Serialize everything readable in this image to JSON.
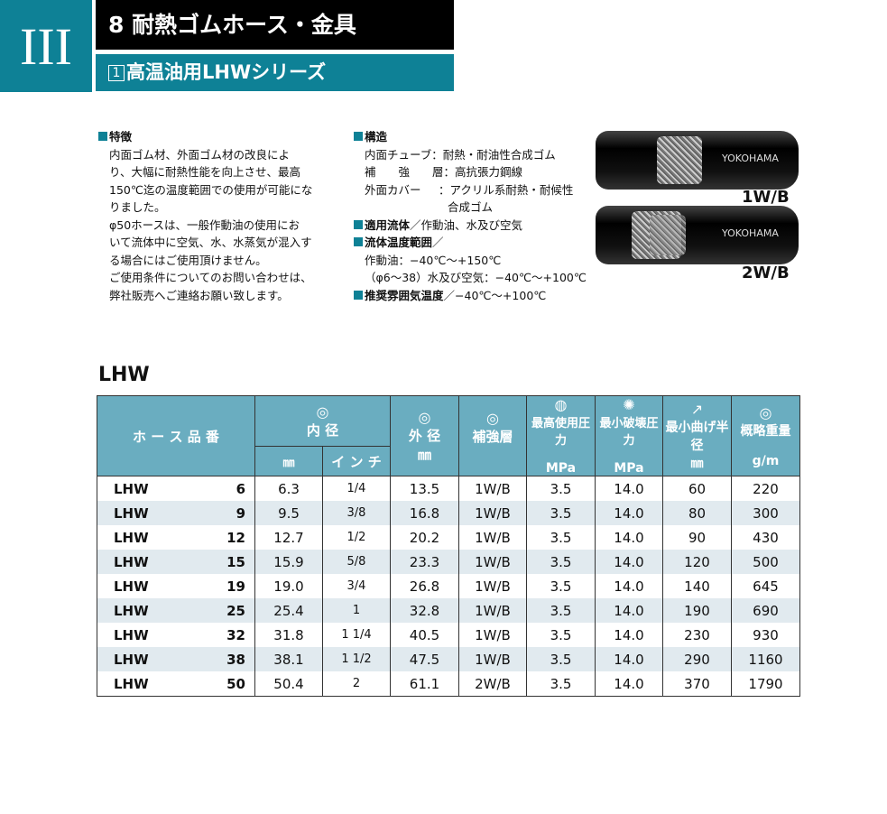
{
  "header": {
    "section": "III",
    "chapter": "8 耐熱ゴムホース・金具",
    "series_num": "1",
    "series": "高温油用LHWシリーズ"
  },
  "features": {
    "title": "特徴",
    "lines": [
      "内面ゴム材、外面ゴム材の改良によ",
      "り、大幅に耐熱性能を向上させ、最高",
      "150℃迄の温度範囲での使用が可能にな",
      "りました。",
      "φ50ホースは、一般作動油の使用にお",
      "いて流体中に空気、水、水蒸気が混入す",
      "る場合にはご使用頂けません。",
      "ご使用条件についてのお問い合わせは、",
      "弊社販売へご連絡お願い致します。"
    ]
  },
  "structure": {
    "title": "構造",
    "inner_label": "内面チューブ",
    "inner": "：耐熱・耐油性合成ゴム",
    "reinf_label": "補　　強　　層",
    "reinf": "：高抗張力鋼線",
    "outer_label": "外面カバー",
    "outer": "：アクリル系耐熱・耐候性",
    "outer2": "合成ゴム",
    "fluid_title": "適用流体",
    "fluid": "／作動油、水及び空気",
    "temp_title": "流体温度範囲",
    "temp_sep": "／",
    "temp1": "作動油：−40℃〜+150℃",
    "temp2": "（φ6〜38）水及び空気：−40℃〜+100℃",
    "amb_title": "推奨雰囲気温度",
    "amb": "／−40℃〜+100℃"
  },
  "images": {
    "brand": "YOKOHAMA",
    "label1": "1W/B",
    "label2": "2W/B"
  },
  "table": {
    "title": "LHW",
    "headers": {
      "name": "ホ ー ス 品 番",
      "id": "内 径",
      "id_mm": "㎜",
      "id_inch": "イ ン チ",
      "od": "外 径",
      "od_unit": "㎜",
      "reinf": "補強層",
      "wp": "最高使用圧力",
      "wp_unit": "MPa",
      "bp": "最小破壊圧力",
      "bp_unit": "MPa",
      "br": "最小曲げ半径",
      "br_unit": "㎜",
      "wt": "概略重量",
      "wt_unit": "g/m"
    },
    "rows": [
      [
        "LHW",
        "6",
        "6.3",
        "1/4",
        "13.5",
        "1W/B",
        "3.5",
        "14.0",
        "60",
        "220"
      ],
      [
        "LHW",
        "9",
        "9.5",
        "3/8",
        "16.8",
        "1W/B",
        "3.5",
        "14.0",
        "80",
        "300"
      ],
      [
        "LHW",
        "12",
        "12.7",
        "1/2",
        "20.2",
        "1W/B",
        "3.5",
        "14.0",
        "90",
        "430"
      ],
      [
        "LHW",
        "15",
        "15.9",
        "5/8",
        "23.3",
        "1W/B",
        "3.5",
        "14.0",
        "120",
        "500"
      ],
      [
        "LHW",
        "19",
        "19.0",
        "3/4",
        "26.8",
        "1W/B",
        "3.5",
        "14.0",
        "140",
        "645"
      ],
      [
        "LHW",
        "25",
        "25.4",
        "1",
        "32.8",
        "1W/B",
        "3.5",
        "14.0",
        "190",
        "690"
      ],
      [
        "LHW",
        "32",
        "31.8",
        "1 1/4",
        "40.5",
        "1W/B",
        "3.5",
        "14.0",
        "230",
        "930"
      ],
      [
        "LHW",
        "38",
        "38.1",
        "1 1/2",
        "47.5",
        "1W/B",
        "3.5",
        "14.0",
        "290",
        "1160"
      ],
      [
        "LHW",
        "50",
        "50.4",
        "2",
        "61.1",
        "2W/B",
        "3.5",
        "14.0",
        "370",
        "1790"
      ]
    ]
  }
}
